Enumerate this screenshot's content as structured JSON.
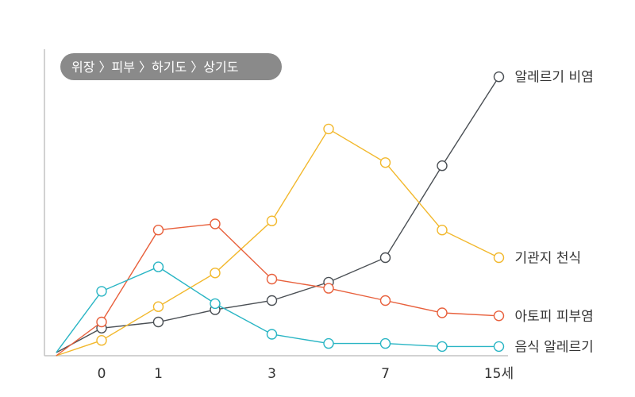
{
  "chart_data": {
    "type": "line",
    "badge": "위장 〉피부 〉하기도 〉상기도",
    "x_ticks": [
      "0",
      "1",
      "3",
      "7",
      "15세"
    ],
    "ylim": [
      0,
      100
    ],
    "grid": false,
    "series": [
      {
        "name": "알레르기 비염",
        "color": "#4a4f54",
        "x": [
          -0.8,
          0,
          1,
          2,
          3,
          4,
          5,
          6,
          7
        ],
        "values": [
          1,
          9,
          11,
          15,
          18,
          24,
          32,
          62,
          91
        ]
      },
      {
        "name": "기관지 천식",
        "color": "#f2b82c",
        "x": [
          -0.8,
          0,
          1,
          2,
          3,
          4,
          5,
          6,
          7
        ],
        "values": [
          0,
          5,
          16,
          27,
          44,
          74,
          63,
          41,
          32
        ]
      },
      {
        "name": "아토피 피부염",
        "color": "#e8603c",
        "x": [
          -0.8,
          0,
          1,
          2,
          3,
          4,
          5,
          6,
          7
        ],
        "values": [
          0,
          11,
          41,
          43,
          25,
          22,
          18,
          14,
          13
        ]
      },
      {
        "name": "음식 알레르기",
        "color": "#29b5c4",
        "x": [
          -0.8,
          0,
          1,
          2,
          3,
          4,
          5,
          6,
          7
        ],
        "values": [
          1,
          21,
          29,
          17,
          7,
          4,
          4,
          3,
          3
        ]
      }
    ]
  }
}
